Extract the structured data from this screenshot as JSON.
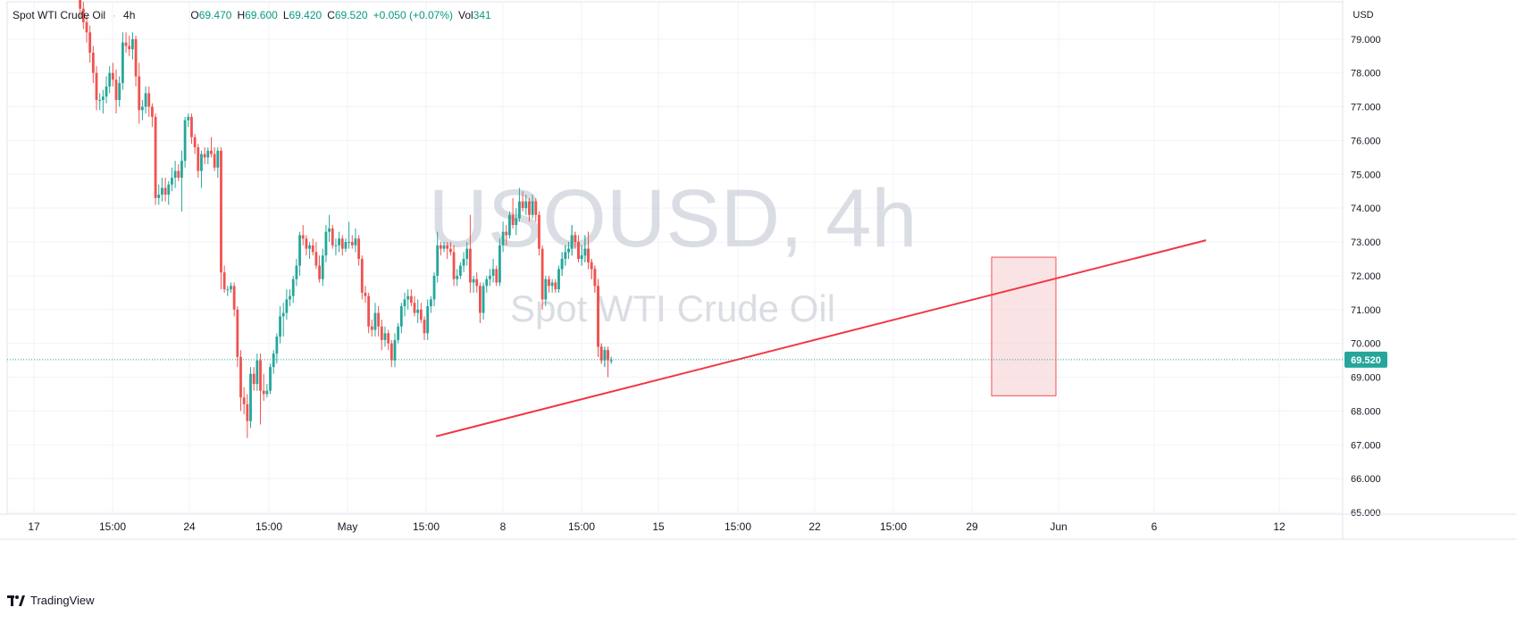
{
  "symbol_name": "Spot WTI Crude Oil",
  "interval": "4h",
  "legend": {
    "open_key": "O",
    "open": "69.470",
    "high_key": "H",
    "high": "69.600",
    "low_key": "L",
    "low": "69.420",
    "close_key": "C",
    "close": "69.520",
    "change": "+0.050 (+0.07%)",
    "vol_key": "Vol",
    "vol": "341"
  },
  "watermark": {
    "ticker": "USOUSD, 4h",
    "name": "Spot WTI Crude Oil"
  },
  "footer": {
    "brand": "TradingView"
  },
  "colors": {
    "up": "#26a69a",
    "down": "#ef5350",
    "trendline": "#f23645",
    "price_label_bg": "#26a69a",
    "box_fill": "#f8d7da",
    "box_stroke": "#ef5350"
  },
  "chart_data": {
    "type": "candlestick",
    "currency_label": "USD",
    "ylim": [
      64.8,
      80.6
    ],
    "y_ticks": [
      "65.000",
      "66.000",
      "67.000",
      "68.000",
      "69.000",
      "70.000",
      "71.000",
      "72.000",
      "73.000",
      "74.000",
      "75.000",
      "76.000",
      "77.000",
      "78.000",
      "79.000"
    ],
    "x_ticks": [
      "17",
      "15:00",
      "24",
      "15:00",
      "May",
      "15:00",
      "8",
      "15:00",
      "15",
      "15:00",
      "22",
      "15:00",
      "29",
      "Jun",
      "6",
      "12"
    ],
    "current_price": "69.520",
    "candles": [
      [
        80.6,
        80.9,
        80.2,
        80.4
      ],
      [
        80.4,
        80.6,
        79.6,
        79.9
      ],
      [
        79.9,
        80.1,
        79.3,
        79.5
      ],
      [
        79.5,
        79.7,
        78.9,
        79.2
      ],
      [
        79.2,
        79.4,
        78.3,
        78.6
      ],
      [
        78.6,
        78.8,
        77.7,
        78.0
      ],
      [
        78.0,
        78.2,
        76.9,
        77.2
      ],
      [
        77.2,
        77.4,
        76.9,
        77.2
      ],
      [
        77.2,
        77.5,
        76.8,
        77.3
      ],
      [
        77.3,
        77.9,
        77.1,
        77.6
      ],
      [
        77.6,
        78.2,
        77.4,
        78.0
      ],
      [
        78.0,
        78.3,
        77.6,
        77.8
      ],
      [
        77.8,
        78.1,
        76.8,
        77.2
      ],
      [
        77.2,
        77.9,
        77.0,
        77.7
      ],
      [
        77.7,
        79.2,
        77.5,
        78.9
      ],
      [
        78.9,
        79.2,
        78.6,
        78.8
      ],
      [
        78.8,
        79.1,
        78.5,
        78.7
      ],
      [
        78.7,
        79.2,
        78.4,
        79.0
      ],
      [
        79.0,
        79.1,
        77.6,
        77.9
      ],
      [
        77.9,
        78.3,
        76.5,
        76.9
      ],
      [
        76.9,
        77.2,
        76.6,
        77.0
      ],
      [
        77.0,
        77.6,
        76.8,
        77.4
      ],
      [
        77.4,
        77.6,
        76.7,
        77.0
      ],
      [
        77.0,
        77.1,
        76.4,
        76.7
      ],
      [
        76.7,
        76.8,
        74.1,
        74.3
      ],
      [
        74.3,
        74.7,
        74.1,
        74.4
      ],
      [
        74.4,
        74.9,
        74.2,
        74.6
      ],
      [
        74.6,
        74.9,
        74.2,
        74.4
      ],
      [
        74.4,
        74.8,
        74.1,
        74.7
      ],
      [
        74.7,
        75.2,
        74.5,
        74.9
      ],
      [
        74.9,
        75.4,
        74.6,
        75.1
      ],
      [
        75.1,
        75.3,
        74.8,
        74.9
      ],
      [
        74.9,
        75.7,
        73.9,
        75.4
      ],
      [
        75.4,
        76.7,
        75.2,
        76.6
      ],
      [
        76.6,
        76.8,
        76.4,
        76.7
      ],
      [
        76.7,
        76.8,
        75.9,
        76.1
      ],
      [
        76.1,
        76.2,
        75.6,
        75.8
      ],
      [
        75.8,
        75.9,
        74.9,
        75.1
      ],
      [
        75.1,
        75.7,
        74.6,
        75.6
      ],
      [
        75.6,
        75.8,
        75.3,
        75.5
      ],
      [
        75.5,
        75.8,
        75.3,
        75.7
      ],
      [
        75.7,
        76.1,
        75.5,
        75.6
      ],
      [
        75.6,
        75.8,
        75.1,
        75.2
      ],
      [
        75.2,
        75.8,
        74.9,
        75.7
      ],
      [
        75.7,
        75.8,
        71.6,
        72.1
      ],
      [
        72.1,
        72.3,
        71.5,
        71.6
      ],
      [
        71.6,
        71.7,
        71.4,
        71.6
      ],
      [
        71.6,
        71.8,
        71.5,
        71.7
      ],
      [
        71.7,
        71.8,
        70.8,
        71.0
      ],
      [
        71.0,
        71.1,
        69.3,
        69.6
      ],
      [
        69.6,
        69.8,
        68.0,
        68.4
      ],
      [
        68.4,
        68.7,
        67.9,
        68.2
      ],
      [
        68.2,
        68.5,
        67.2,
        67.7
      ],
      [
        67.7,
        69.3,
        67.5,
        69.1
      ],
      [
        69.1,
        69.3,
        68.6,
        68.8
      ],
      [
        68.8,
        69.7,
        68.6,
        69.5
      ],
      [
        69.5,
        69.7,
        67.6,
        68.6
      ],
      [
        68.6,
        69.1,
        68.3,
        68.5
      ],
      [
        68.5,
        68.8,
        68.4,
        68.6
      ],
      [
        68.6,
        69.4,
        68.5,
        69.3
      ],
      [
        69.3,
        69.8,
        69.1,
        69.7
      ],
      [
        69.7,
        70.3,
        69.4,
        70.2
      ],
      [
        70.2,
        71.1,
        70.0,
        70.8
      ],
      [
        70.8,
        71.2,
        70.2,
        70.9
      ],
      [
        70.9,
        71.6,
        70.7,
        71.3
      ],
      [
        71.3,
        71.6,
        71.1,
        71.4
      ],
      [
        71.4,
        72.0,
        71.2,
        71.9
      ],
      [
        71.9,
        72.5,
        71.7,
        72.3
      ],
      [
        72.3,
        73.3,
        72.0,
        73.2
      ],
      [
        73.2,
        73.5,
        72.9,
        73.1
      ],
      [
        73.1,
        73.2,
        72.6,
        72.8
      ],
      [
        72.8,
        73.0,
        72.5,
        72.9
      ],
      [
        72.9,
        73.1,
        72.6,
        72.7
      ],
      [
        72.7,
        73.0,
        72.2,
        72.3
      ],
      [
        72.3,
        72.6,
        71.8,
        71.9
      ],
      [
        71.9,
        72.8,
        71.7,
        72.6
      ],
      [
        72.6,
        73.5,
        72.4,
        73.3
      ],
      [
        73.3,
        73.8,
        73.0,
        73.4
      ],
      [
        73.4,
        73.5,
        72.8,
        72.9
      ],
      [
        72.9,
        73.1,
        72.6,
        72.9
      ],
      [
        72.9,
        73.3,
        72.7,
        73.1
      ],
      [
        73.1,
        73.2,
        72.6,
        72.8
      ],
      [
        72.8,
        73.1,
        72.7,
        73.0
      ],
      [
        73.0,
        73.6,
        72.8,
        73.0
      ],
      [
        73.0,
        73.2,
        72.8,
        72.9
      ],
      [
        72.9,
        73.4,
        72.7,
        73.1
      ],
      [
        73.1,
        73.2,
        72.3,
        72.5
      ],
      [
        72.5,
        72.6,
        71.3,
        71.5
      ],
      [
        71.5,
        71.7,
        71.2,
        71.4
      ],
      [
        71.4,
        71.5,
        70.3,
        70.5
      ],
      [
        70.5,
        70.7,
        70.2,
        70.4
      ],
      [
        70.4,
        71.2,
        70.2,
        70.9
      ],
      [
        70.9,
        71.1,
        70.2,
        70.5
      ],
      [
        70.5,
        70.7,
        69.8,
        70.1
      ],
      [
        70.1,
        70.5,
        69.9,
        70.3
      ],
      [
        70.3,
        70.4,
        69.8,
        70.0
      ],
      [
        70.0,
        70.1,
        69.3,
        69.5
      ],
      [
        69.5,
        70.3,
        69.3,
        70.1
      ],
      [
        70.1,
        70.6,
        70.0,
        70.5
      ],
      [
        70.5,
        71.2,
        70.3,
        71.1
      ],
      [
        71.1,
        71.5,
        70.8,
        71.3
      ],
      [
        71.3,
        71.6,
        71.0,
        71.4
      ],
      [
        71.4,
        71.6,
        71.1,
        71.2
      ],
      [
        71.2,
        71.4,
        70.8,
        70.9
      ],
      [
        70.9,
        71.3,
        70.6,
        71.0
      ],
      [
        71.0,
        71.2,
        70.6,
        70.7
      ],
      [
        70.7,
        70.8,
        70.1,
        70.3
      ],
      [
        70.3,
        71.3,
        70.1,
        71.1
      ],
      [
        71.1,
        71.4,
        70.9,
        71.3
      ],
      [
        71.3,
        72.1,
        71.1,
        72.0
      ],
      [
        72.0,
        73.3,
        71.8,
        72.9
      ],
      [
        72.9,
        73.0,
        72.6,
        72.8
      ],
      [
        72.8,
        73.0,
        72.7,
        72.9
      ],
      [
        72.9,
        73.0,
        72.5,
        72.8
      ],
      [
        72.8,
        73.0,
        72.6,
        72.7
      ],
      [
        72.7,
        72.9,
        71.7,
        71.9
      ],
      [
        71.9,
        72.2,
        71.7,
        72.0
      ],
      [
        72.0,
        72.4,
        71.9,
        72.3
      ],
      [
        72.3,
        72.7,
        72.1,
        72.5
      ],
      [
        72.5,
        73.0,
        72.3,
        72.8
      ],
      [
        72.8,
        73.8,
        71.5,
        71.8
      ],
      [
        71.8,
        72.0,
        71.5,
        71.9
      ],
      [
        71.9,
        72.1,
        71.5,
        71.7
      ],
      [
        71.7,
        71.8,
        70.6,
        70.9
      ],
      [
        70.9,
        71.8,
        70.7,
        71.7
      ],
      [
        71.7,
        72.0,
        71.5,
        71.9
      ],
      [
        71.9,
        72.2,
        71.7,
        72.0
      ],
      [
        72.0,
        72.5,
        71.8,
        72.2
      ],
      [
        72.2,
        72.3,
        71.7,
        71.8
      ],
      [
        71.8,
        73.1,
        71.7,
        72.9
      ],
      [
        72.9,
        73.6,
        72.7,
        73.3
      ],
      [
        73.3,
        73.5,
        72.9,
        73.2
      ],
      [
        73.2,
        73.9,
        73.1,
        73.8
      ],
      [
        73.8,
        74.3,
        73.4,
        73.5
      ],
      [
        73.5,
        74.0,
        73.2,
        73.7
      ],
      [
        73.7,
        74.6,
        73.6,
        74.2
      ],
      [
        74.2,
        74.5,
        73.9,
        74.0
      ],
      [
        74.0,
        74.4,
        73.8,
        74.2
      ],
      [
        74.2,
        74.3,
        73.6,
        73.8
      ],
      [
        73.8,
        74.4,
        73.7,
        74.2
      ],
      [
        74.2,
        74.3,
        73.6,
        73.8
      ],
      [
        73.8,
        73.9,
        72.6,
        72.8
      ],
      [
        72.8,
        72.9,
        71.0,
        71.3
      ],
      [
        71.3,
        72.0,
        71.1,
        71.9
      ],
      [
        71.9,
        72.0,
        71.5,
        71.7
      ],
      [
        71.7,
        71.9,
        71.5,
        71.8
      ],
      [
        71.8,
        71.9,
        71.5,
        71.6
      ],
      [
        71.6,
        72.3,
        71.5,
        72.2
      ],
      [
        72.2,
        72.7,
        72.0,
        72.5
      ],
      [
        72.5,
        72.9,
        72.3,
        72.7
      ],
      [
        72.7,
        73.0,
        72.5,
        72.8
      ],
      [
        72.8,
        73.5,
        72.6,
        73.2
      ],
      [
        73.2,
        73.3,
        72.8,
        73.0
      ],
      [
        73.0,
        73.2,
        72.4,
        72.5
      ],
      [
        72.5,
        72.9,
        72.3,
        72.6
      ],
      [
        72.6,
        73.2,
        72.4,
        72.8
      ],
      [
        72.8,
        73.3,
        72.2,
        72.4
      ],
      [
        72.4,
        72.5,
        71.9,
        72.2
      ],
      [
        72.2,
        72.3,
        71.5,
        71.7
      ],
      [
        71.7,
        71.9,
        69.6,
        69.9
      ],
      [
        69.9,
        70.0,
        69.4,
        69.5
      ],
      [
        69.5,
        69.9,
        69.3,
        69.8
      ],
      [
        69.8,
        69.9,
        69.0,
        69.5
      ],
      [
        69.5,
        69.6,
        69.4,
        69.5
      ]
    ],
    "trendline": {
      "from": [
        "May 11",
        67.25
      ],
      "to": [
        "Jun 7",
        73.05
      ]
    }
  }
}
